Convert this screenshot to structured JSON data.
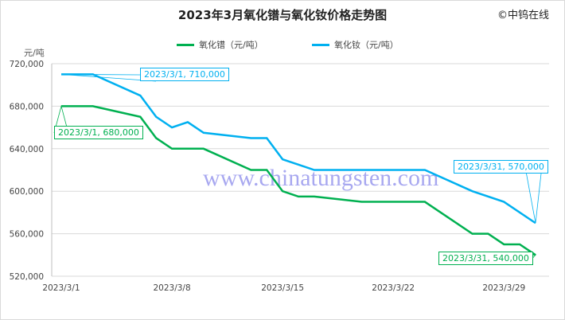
{
  "brand": "©中钨在线",
  "chart_data": {
    "type": "line",
    "title": "2023年3月氧化镨与氧化钕价格走势图",
    "ylabel": "元/吨",
    "ylim": [
      520000,
      720000
    ],
    "yticks": [
      "720,000",
      "680,000",
      "640,000",
      "600,000",
      "560,000",
      "520,000"
    ],
    "ytick_values": [
      720000,
      680000,
      640000,
      600000,
      560000,
      520000
    ],
    "xlim": [
      "2023/3/1",
      "2023/3/31"
    ],
    "xticks": [
      "2023/3/1",
      "2023/3/8",
      "2023/3/15",
      "2023/3/22",
      "2023/3/29"
    ],
    "xtick_days": [
      1,
      8,
      15,
      22,
      29
    ],
    "grid": "horizontal",
    "legend": "top",
    "series": [
      {
        "name": "氧化镨（元/吨）",
        "color": "#00b050",
        "x": [
          1,
          3,
          6,
          7,
          8,
          10,
          13,
          14,
          15,
          16,
          17,
          20,
          24,
          27,
          28,
          29,
          30,
          31
        ],
        "values": [
          680000,
          680000,
          670000,
          650000,
          640000,
          640000,
          620000,
          620000,
          600000,
          595000,
          595000,
          590000,
          590000,
          560000,
          560000,
          550000,
          550000,
          540000
        ]
      },
      {
        "name": "氧化钕（元/吨）",
        "color": "#00b0f0",
        "x": [
          1,
          3,
          6,
          7,
          8,
          9,
          10,
          13,
          14,
          15,
          16,
          17,
          20,
          24,
          27,
          29,
          31
        ],
        "values": [
          710000,
          710000,
          690000,
          670000,
          660000,
          665000,
          655000,
          650000,
          650000,
          630000,
          625000,
          620000,
          620000,
          620000,
          600000,
          590000,
          570000
        ]
      }
    ],
    "annotations": [
      {
        "text": "2023/3/1, 710,000",
        "series": 1,
        "color": "#00b0f0"
      },
      {
        "text": "2023/3/1, 680,000",
        "series": 0,
        "color": "#00b050"
      },
      {
        "text": "2023/3/31, 570,000",
        "series": 1,
        "color": "#00b0f0"
      },
      {
        "text": "2023/3/31, 540,000",
        "series": 0,
        "color": "#00b050"
      }
    ]
  },
  "watermark": "www.chinatungsten.com"
}
